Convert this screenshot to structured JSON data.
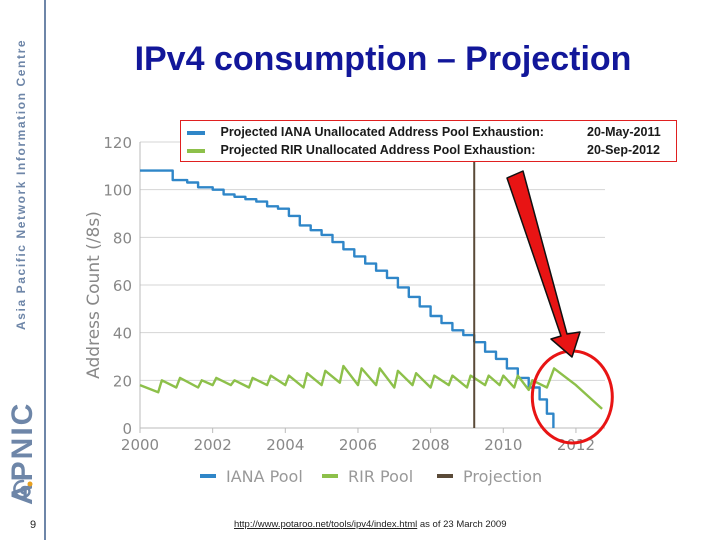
{
  "slide": {
    "title": "IPv4 consumption – Projection",
    "number": "9",
    "sidebar_title": "Asia Pacific Network Information Centre",
    "brand": "APNIC",
    "source_link": "http://www.potaroo.net/tools/ipv4/index.html",
    "source_suffix": " as of 23 March 2009"
  },
  "legend_box": {
    "iana_label": "Projected IANA Unallocated Address Pool Exhaustion:",
    "iana_date": "20-May-2011",
    "rir_label": "Projected RIR Unallocated Address Pool Exhaustion:",
    "rir_date": "20-Sep-2012"
  },
  "colors": {
    "title": "#12179a",
    "iana": "#2f86c8",
    "rir": "#8dc04a",
    "projection": "#5a4a38",
    "accent_red": "#e81414"
  },
  "chart_data": {
    "type": "line",
    "title": "",
    "xlabel": "",
    "ylabel": "Address Count (/8s)",
    "xlim": [
      2000,
      2012.8
    ],
    "ylim": [
      0,
      120
    ],
    "xticks": [
      2000,
      2002,
      2004,
      2006,
      2008,
      2010,
      2012
    ],
    "yticks": [
      0,
      20,
      40,
      60,
      80,
      100,
      120
    ],
    "grid": true,
    "legend": [
      "IANA Pool",
      "RIR Pool",
      "Projection"
    ],
    "projection_x": 2009.2,
    "series": [
      {
        "name": "IANA Pool",
        "role": "history",
        "x": [
          2000.0,
          2000.5,
          2000.9,
          2001.3,
          2001.6,
          2002.0,
          2002.3,
          2002.6,
          2002.9,
          2003.2,
          2003.5,
          2003.8,
          2004.1,
          2004.4,
          2004.7,
          2005.0,
          2005.3,
          2005.6,
          2005.9,
          2006.2,
          2006.5,
          2006.8,
          2007.1,
          2007.4,
          2007.7,
          2008.0,
          2008.3,
          2008.6,
          2008.9,
          2009.2
        ],
        "values": [
          108,
          108,
          104,
          103,
          101,
          100,
          98,
          97,
          96,
          95,
          93,
          92,
          89,
          85,
          83,
          81,
          78,
          75,
          72,
          69,
          66,
          63,
          59,
          55,
          51,
          47,
          44,
          41,
          39,
          36
        ]
      },
      {
        "name": "IANA Pool",
        "role": "projection",
        "x": [
          2009.2,
          2009.5,
          2009.8,
          2010.1,
          2010.4,
          2010.7,
          2011.0,
          2011.2,
          2011.38
        ],
        "values": [
          36,
          32,
          29,
          25,
          21,
          17,
          12,
          6,
          0
        ]
      },
      {
        "name": "RIR Pool",
        "role": "history",
        "x": [
          2000.0,
          2000.5,
          2000.6,
          2001.0,
          2001.1,
          2001.6,
          2001.7,
          2002.0,
          2002.1,
          2002.5,
          2002.6,
          2003.0,
          2003.1,
          2003.5,
          2003.6,
          2004.0,
          2004.1,
          2004.5,
          2004.6,
          2005.0,
          2005.1,
          2005.5,
          2005.6,
          2006.0,
          2006.1,
          2006.5,
          2006.6,
          2007.0,
          2007.1,
          2007.5,
          2007.6,
          2008.0,
          2008.1,
          2008.5,
          2008.6,
          2009.0,
          2009.1,
          2009.2
        ],
        "values": [
          18,
          15,
          20,
          17,
          21,
          17,
          20,
          18,
          21,
          18,
          20,
          17,
          21,
          18,
          22,
          18,
          22,
          17,
          23,
          18,
          24,
          19,
          26,
          18,
          25,
          18,
          25,
          17,
          24,
          18,
          23,
          17,
          22,
          18,
          22,
          17,
          22,
          21
        ]
      },
      {
        "name": "RIR Pool",
        "role": "projection",
        "x": [
          2009.2,
          2009.5,
          2009.6,
          2009.9,
          2010.0,
          2010.3,
          2010.4,
          2010.7,
          2010.8,
          2011.2,
          2011.4,
          2012.0,
          2012.72
        ],
        "values": [
          21,
          18,
          22,
          18,
          22,
          17,
          22,
          16,
          20,
          17,
          25,
          18,
          8
        ]
      }
    ]
  }
}
